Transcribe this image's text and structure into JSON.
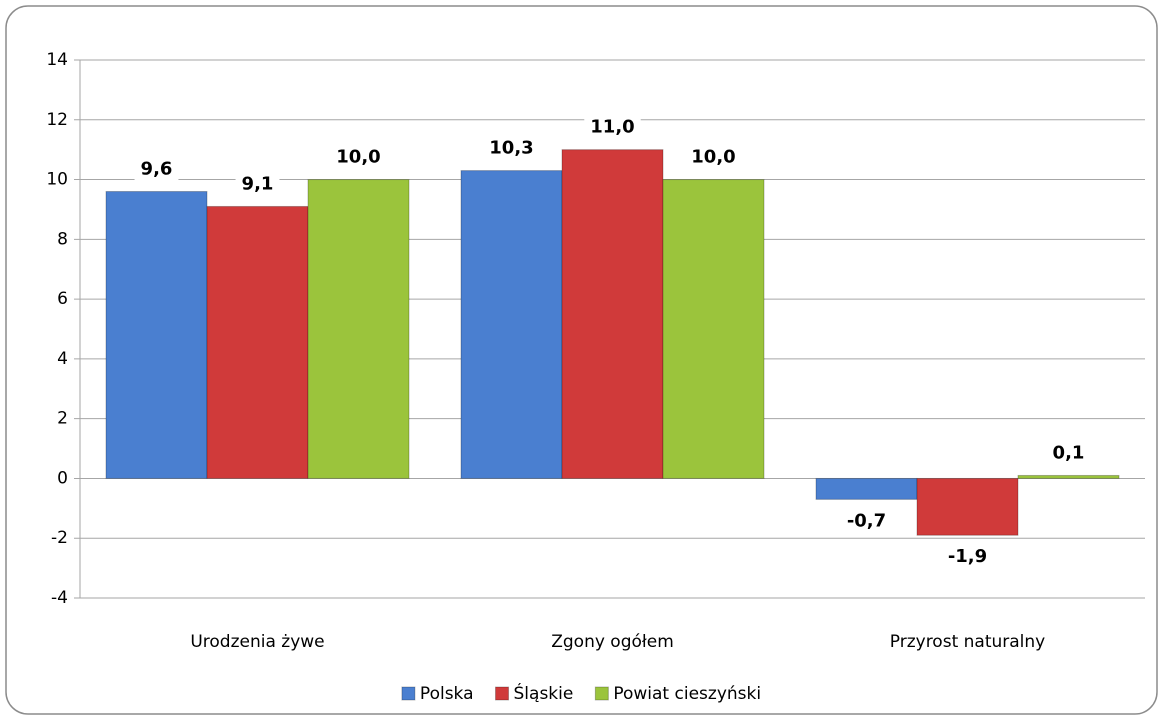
{
  "chart_data": {
    "type": "bar",
    "categories": [
      "Urodzenia żywe",
      "Zgony ogółem",
      "Przyrost naturalny"
    ],
    "series": [
      {
        "name": "Polska",
        "color": "#4a7fd0",
        "values": [
          9.6,
          10.3,
          -0.7
        ],
        "value_labels": [
          "9,6",
          "10,3",
          "-0,7"
        ]
      },
      {
        "name": "Śląskie",
        "color": "#d03a3a",
        "values": [
          9.1,
          11.0,
          -1.9
        ],
        "value_labels": [
          "9,1",
          "11,0",
          "-1,9"
        ]
      },
      {
        "name": "Powiat cieszyński",
        "color": "#9bc43c",
        "values": [
          10.0,
          10.0,
          0.1
        ],
        "value_labels": [
          "10,0",
          "10,0",
          "0,1"
        ]
      }
    ],
    "ylim": [
      -4,
      14
    ],
    "yticks": [
      -4,
      -2,
      0,
      2,
      4,
      6,
      8,
      10,
      12,
      14
    ],
    "grid": true,
    "legend": "bottom"
  }
}
